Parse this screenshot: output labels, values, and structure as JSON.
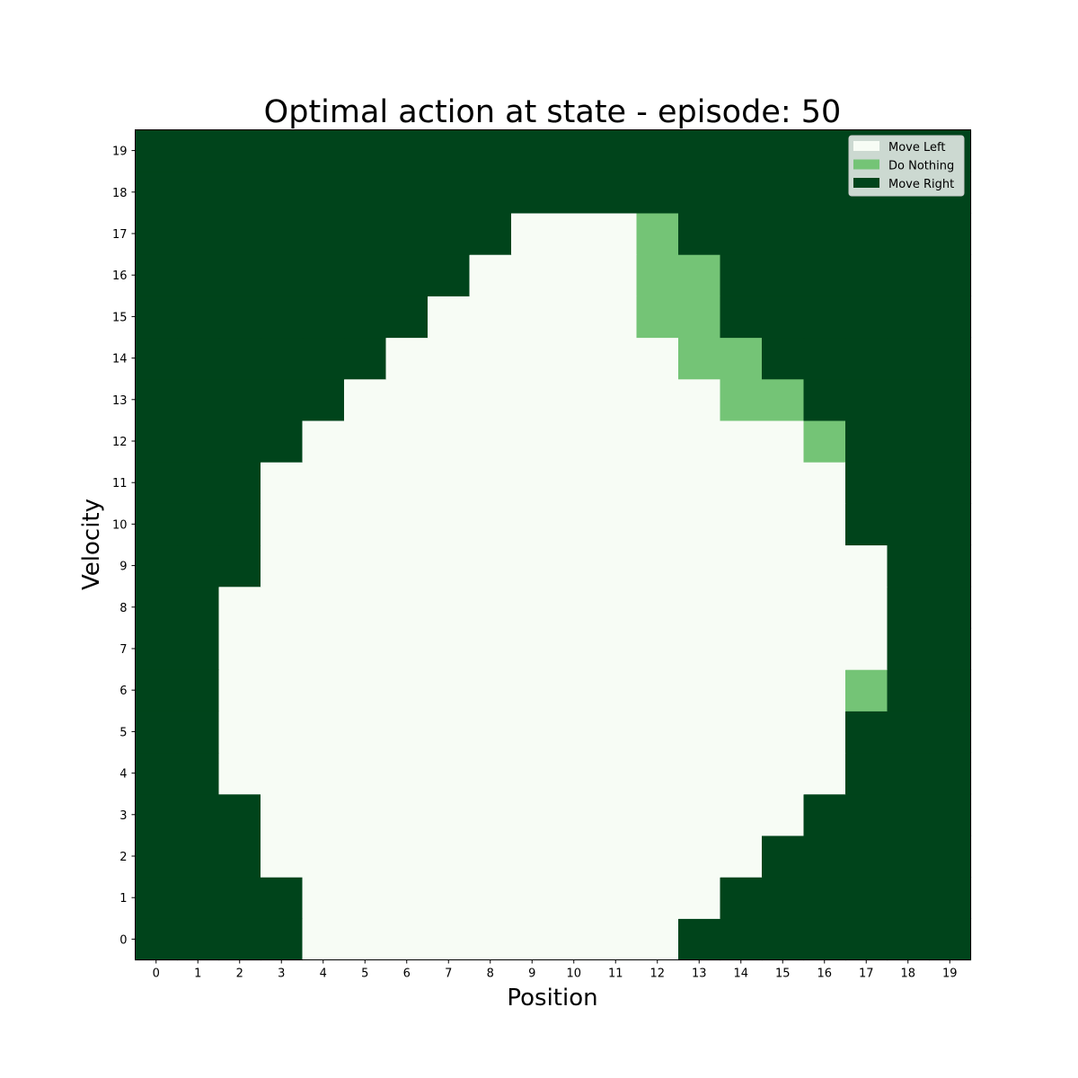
{
  "chart_data": {
    "type": "heatmap",
    "title": "Optimal action at state - episode: 50",
    "xlabel": "Position",
    "ylabel": "Velocity",
    "x_ticks": [
      "0",
      "1",
      "2",
      "3",
      "4",
      "5",
      "6",
      "7",
      "8",
      "9",
      "10",
      "11",
      "12",
      "13",
      "14",
      "15",
      "16",
      "17",
      "18",
      "19"
    ],
    "y_ticks": [
      "0",
      "1",
      "2",
      "3",
      "4",
      "5",
      "6",
      "7",
      "8",
      "9",
      "10",
      "11",
      "12",
      "13",
      "14",
      "15",
      "16",
      "17",
      "18",
      "19"
    ],
    "xlim": [
      -0.5,
      19.5
    ],
    "ylim": [
      -0.5,
      19.5
    ],
    "legend": {
      "placement": "top-right",
      "entries": [
        {
          "label": "Move Left",
          "value": 0,
          "color": "#f7fcf5"
        },
        {
          "label": "Do Nothing",
          "value": 1,
          "color": "#74c476"
        },
        {
          "label": "Move Right",
          "value": 2,
          "color": "#00441b"
        }
      ]
    },
    "rows_by_velocity": [
      [
        2,
        2,
        2,
        2,
        0,
        0,
        0,
        0,
        0,
        0,
        0,
        0,
        0,
        2,
        2,
        2,
        2,
        2,
        2,
        2
      ],
      [
        2,
        2,
        2,
        2,
        0,
        0,
        0,
        0,
        0,
        0,
        0,
        0,
        0,
        0,
        2,
        2,
        2,
        2,
        2,
        2
      ],
      [
        2,
        2,
        2,
        0,
        0,
        0,
        0,
        0,
        0,
        0,
        0,
        0,
        0,
        0,
        0,
        2,
        2,
        2,
        2,
        2
      ],
      [
        2,
        2,
        2,
        0,
        0,
        0,
        0,
        0,
        0,
        0,
        0,
        0,
        0,
        0,
        0,
        0,
        2,
        2,
        2,
        2
      ],
      [
        2,
        2,
        0,
        0,
        0,
        0,
        0,
        0,
        0,
        0,
        0,
        0,
        0,
        0,
        0,
        0,
        0,
        2,
        2,
        2
      ],
      [
        2,
        2,
        0,
        0,
        0,
        0,
        0,
        0,
        0,
        0,
        0,
        0,
        0,
        0,
        0,
        0,
        0,
        2,
        2,
        2
      ],
      [
        2,
        2,
        0,
        0,
        0,
        0,
        0,
        0,
        0,
        0,
        0,
        0,
        0,
        0,
        0,
        0,
        0,
        1,
        2,
        2
      ],
      [
        2,
        2,
        0,
        0,
        0,
        0,
        0,
        0,
        0,
        0,
        0,
        0,
        0,
        0,
        0,
        0,
        0,
        0,
        2,
        2
      ],
      [
        2,
        2,
        0,
        0,
        0,
        0,
        0,
        0,
        0,
        0,
        0,
        0,
        0,
        0,
        0,
        0,
        0,
        0,
        2,
        2
      ],
      [
        2,
        2,
        2,
        0,
        0,
        0,
        0,
        0,
        0,
        0,
        0,
        0,
        0,
        0,
        0,
        0,
        0,
        0,
        2,
        2
      ],
      [
        2,
        2,
        2,
        0,
        0,
        0,
        0,
        0,
        0,
        0,
        0,
        0,
        0,
        0,
        0,
        0,
        0,
        2,
        2,
        2
      ],
      [
        2,
        2,
        2,
        0,
        0,
        0,
        0,
        0,
        0,
        0,
        0,
        0,
        0,
        0,
        0,
        0,
        0,
        2,
        2,
        2
      ],
      [
        2,
        2,
        2,
        2,
        0,
        0,
        0,
        0,
        0,
        0,
        0,
        0,
        0,
        0,
        0,
        0,
        1,
        2,
        2,
        2
      ],
      [
        2,
        2,
        2,
        2,
        2,
        0,
        0,
        0,
        0,
        0,
        0,
        0,
        0,
        0,
        1,
        1,
        2,
        2,
        2,
        2
      ],
      [
        2,
        2,
        2,
        2,
        2,
        2,
        0,
        0,
        0,
        0,
        0,
        0,
        0,
        1,
        1,
        2,
        2,
        2,
        2,
        2
      ],
      [
        2,
        2,
        2,
        2,
        2,
        2,
        2,
        0,
        0,
        0,
        0,
        0,
        1,
        1,
        2,
        2,
        2,
        2,
        2,
        2
      ],
      [
        2,
        2,
        2,
        2,
        2,
        2,
        2,
        2,
        0,
        0,
        0,
        0,
        1,
        1,
        2,
        2,
        2,
        2,
        2,
        2
      ],
      [
        2,
        2,
        2,
        2,
        2,
        2,
        2,
        2,
        2,
        0,
        0,
        0,
        1,
        2,
        2,
        2,
        2,
        2,
        2,
        2
      ],
      [
        2,
        2,
        2,
        2,
        2,
        2,
        2,
        2,
        2,
        2,
        2,
        2,
        2,
        2,
        2,
        2,
        2,
        2,
        2,
        2
      ],
      [
        2,
        2,
        2,
        2,
        2,
        2,
        2,
        2,
        2,
        2,
        2,
        2,
        2,
        2,
        2,
        2,
        2,
        2,
        2,
        2
      ]
    ]
  }
}
